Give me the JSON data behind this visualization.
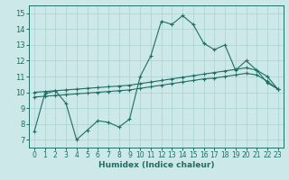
{
  "xlabel": "Humidex (Indice chaleur)",
  "bg_color": "#cce8e8",
  "line_color": "#1e6e64",
  "grid_color": "#aad0d0",
  "xlim": [
    -0.5,
    23.5
  ],
  "ylim": [
    6.5,
    15.5
  ],
  "xticks": [
    0,
    1,
    2,
    3,
    4,
    5,
    6,
    7,
    8,
    9,
    10,
    11,
    12,
    13,
    14,
    15,
    16,
    17,
    18,
    19,
    20,
    21,
    22,
    23
  ],
  "yticks": [
    7,
    8,
    9,
    10,
    11,
    12,
    13,
    14,
    15
  ],
  "line1_x": [
    0,
    1,
    2,
    3,
    4,
    5,
    6,
    7,
    8,
    9,
    10,
    11,
    12,
    13,
    14,
    15,
    16,
    17,
    18,
    19,
    20,
    21,
    22,
    23
  ],
  "line1_y": [
    7.5,
    9.9,
    10.1,
    9.3,
    7.0,
    7.6,
    8.2,
    8.1,
    7.8,
    8.3,
    11.0,
    12.3,
    14.5,
    14.3,
    14.85,
    14.3,
    13.1,
    12.7,
    13.0,
    11.4,
    12.0,
    11.4,
    10.6,
    10.2
  ],
  "line2_x": [
    0,
    1,
    2,
    3,
    4,
    5,
    6,
    7,
    8,
    9,
    10,
    11,
    12,
    13,
    14,
    15,
    16,
    17,
    18,
    19,
    20,
    21,
    22,
    23
  ],
  "line2_y": [
    10.0,
    10.05,
    10.1,
    10.15,
    10.2,
    10.25,
    10.3,
    10.35,
    10.4,
    10.45,
    10.55,
    10.65,
    10.75,
    10.85,
    10.95,
    11.05,
    11.15,
    11.25,
    11.35,
    11.45,
    11.55,
    11.4,
    11.0,
    10.2
  ],
  "line3_x": [
    0,
    1,
    2,
    3,
    4,
    5,
    6,
    7,
    8,
    9,
    10,
    11,
    12,
    13,
    14,
    15,
    16,
    17,
    18,
    19,
    20,
    21,
    22,
    23
  ],
  "line3_y": [
    9.7,
    9.75,
    9.8,
    9.85,
    9.9,
    9.95,
    10.0,
    10.05,
    10.1,
    10.15,
    10.25,
    10.35,
    10.45,
    10.55,
    10.65,
    10.75,
    10.85,
    10.9,
    11.0,
    11.1,
    11.2,
    11.1,
    10.7,
    10.2
  ]
}
